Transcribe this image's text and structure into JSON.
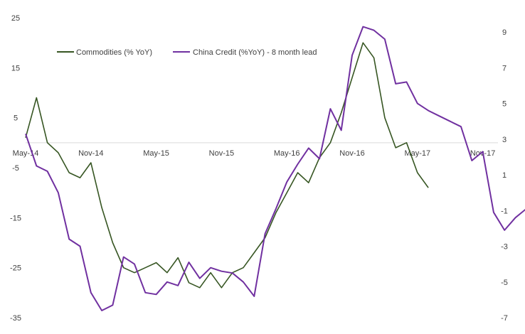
{
  "chart_data": {
    "type": "line",
    "title": "",
    "xlabel": "",
    "ylabel": "",
    "x_ticks": [
      "May-14",
      "Nov-14",
      "May-15",
      "Nov-15",
      "May-16",
      "Nov-16",
      "May-17",
      "Nov-17"
    ],
    "x_range": [
      "May-14",
      "Mar-18"
    ],
    "y_left": {
      "ticks": [
        25,
        15,
        5,
        -5,
        -15,
        -25,
        -35
      ],
      "ylim": [
        -35,
        25
      ]
    },
    "y_right": {
      "ticks": [
        9,
        7,
        5,
        3,
        1,
        -1,
        -3,
        -5,
        -7
      ],
      "ylim": [
        -7,
        9.8
      ]
    },
    "grid": false,
    "legend_position": "top-left",
    "series": [
      {
        "name": "Commodities (% YoY)",
        "axis": "left",
        "color": "#375623",
        "x": [
          "May-14",
          "Jun-14",
          "Jul-14",
          "Aug-14",
          "Sep-14",
          "Oct-14",
          "Nov-14",
          "Dec-14",
          "Jan-15",
          "Feb-15",
          "Mar-15",
          "Apr-15",
          "May-15",
          "Jun-15",
          "Jul-15",
          "Aug-15",
          "Sep-15",
          "Oct-15",
          "Nov-15",
          "Dec-15",
          "Jan-16",
          "Feb-16",
          "Mar-16",
          "Apr-16",
          "May-16",
          "Jun-16",
          "Jul-16",
          "Aug-16",
          "Sep-16",
          "Oct-16",
          "Nov-16",
          "Dec-16",
          "Jan-17",
          "Feb-17",
          "Mar-17",
          "Apr-17",
          "May-17",
          "Jun-17"
        ],
        "values": [
          1,
          9,
          0,
          -2,
          -6,
          -7,
          -4,
          -13,
          -20,
          -25,
          -26,
          -25,
          -24,
          -26,
          -23,
          -28,
          -29,
          -26,
          -29,
          -26,
          -25,
          -22,
          -19,
          -14,
          -10,
          -6,
          -8,
          -3,
          0,
          6,
          13,
          20,
          17,
          5,
          -1,
          0,
          -6,
          -9
        ]
      },
      {
        "name": "China Credit (%YoY) - 8 month lead",
        "axis": "right",
        "color": "#7030A0",
        "x": [
          "May-14",
          "Jun-14",
          "Jul-14",
          "Aug-14",
          "Sep-14",
          "Oct-14",
          "Nov-14",
          "Dec-14",
          "Jan-15",
          "Feb-15",
          "Mar-15",
          "Apr-15",
          "May-15",
          "Jun-15",
          "Jul-15",
          "Aug-15",
          "Sep-15",
          "Oct-15",
          "Nov-15",
          "Dec-15",
          "Jan-16",
          "Feb-16",
          "Mar-16",
          "Apr-16",
          "May-16",
          "Jun-16",
          "Jul-16",
          "Aug-16",
          "Sep-16",
          "Oct-16",
          "Nov-16",
          "Dec-16",
          "Jan-17",
          "Feb-17",
          "Mar-17",
          "Apr-17",
          "May-17",
          "Jun-17",
          "Jul-17",
          "Aug-17",
          "Sep-17",
          "Oct-17",
          "Nov-17",
          "Dec-17",
          "Jan-18",
          "Feb-18",
          "Mar-18"
        ],
        "values": [
          3.3,
          1.5,
          1.2,
          0.0,
          -2.6,
          -3.0,
          -5.6,
          -6.6,
          -6.3,
          -3.6,
          -4.0,
          -5.6,
          -5.7,
          -5.0,
          -5.2,
          -3.9,
          -4.8,
          -4.2,
          -4.4,
          -4.5,
          -5.0,
          -5.8,
          -2.3,
          -0.9,
          0.6,
          1.6,
          2.5,
          1.9,
          4.7,
          3.5,
          7.7,
          9.3,
          9.1,
          8.6,
          6.1,
          6.2,
          5.0,
          4.6,
          4.3,
          4.0,
          3.7,
          1.8,
          2.3,
          -1.1,
          -2.1,
          -1.4,
          -0.9
        ]
      }
    ]
  }
}
